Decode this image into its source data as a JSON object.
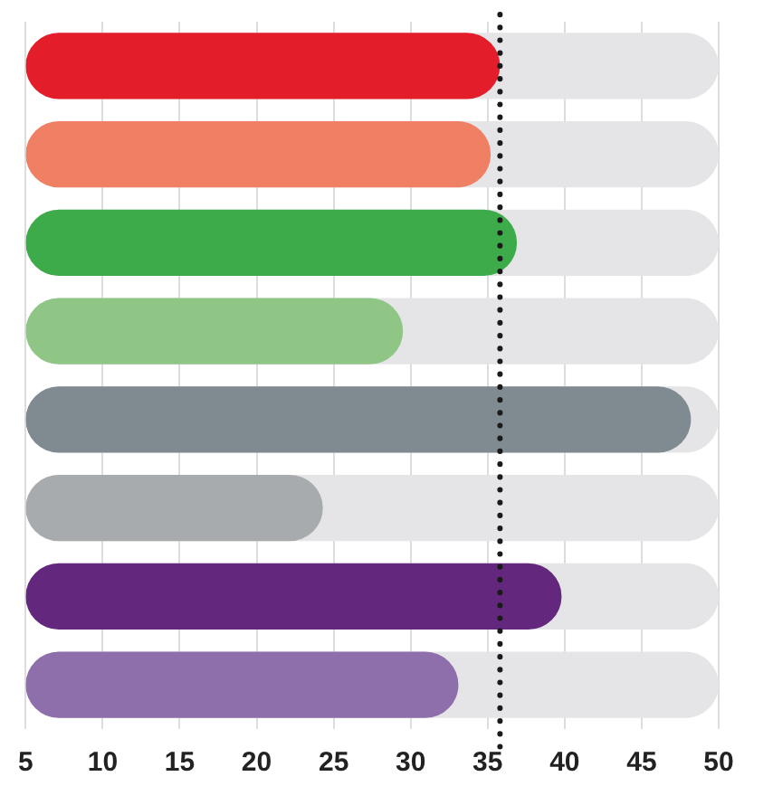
{
  "chart_data": {
    "type": "bar",
    "orientation": "horizontal",
    "categories": [
      null,
      null,
      null,
      null,
      null,
      null,
      null,
      null
    ],
    "series": [
      {
        "values": [
          35.8,
          35.2,
          36.9,
          29.5,
          48.2,
          24.3,
          39.8,
          33.1
        ],
        "colors": [
          "#e31e2a",
          "#ef8063",
          "#3dab4a",
          "#8fc685",
          "#808b91",
          "#a8abad",
          "#63287e",
          "#8f6fab"
        ]
      }
    ],
    "xlim": [
      5,
      50
    ],
    "xticks": [
      5,
      10,
      15,
      20,
      25,
      30,
      35,
      40,
      45,
      50
    ],
    "grid": "x",
    "ref_lines": [
      {
        "axis": "x",
        "value": 35.8,
        "color": "#1a1a1a",
        "line_style": "dotted"
      }
    ]
  }
}
